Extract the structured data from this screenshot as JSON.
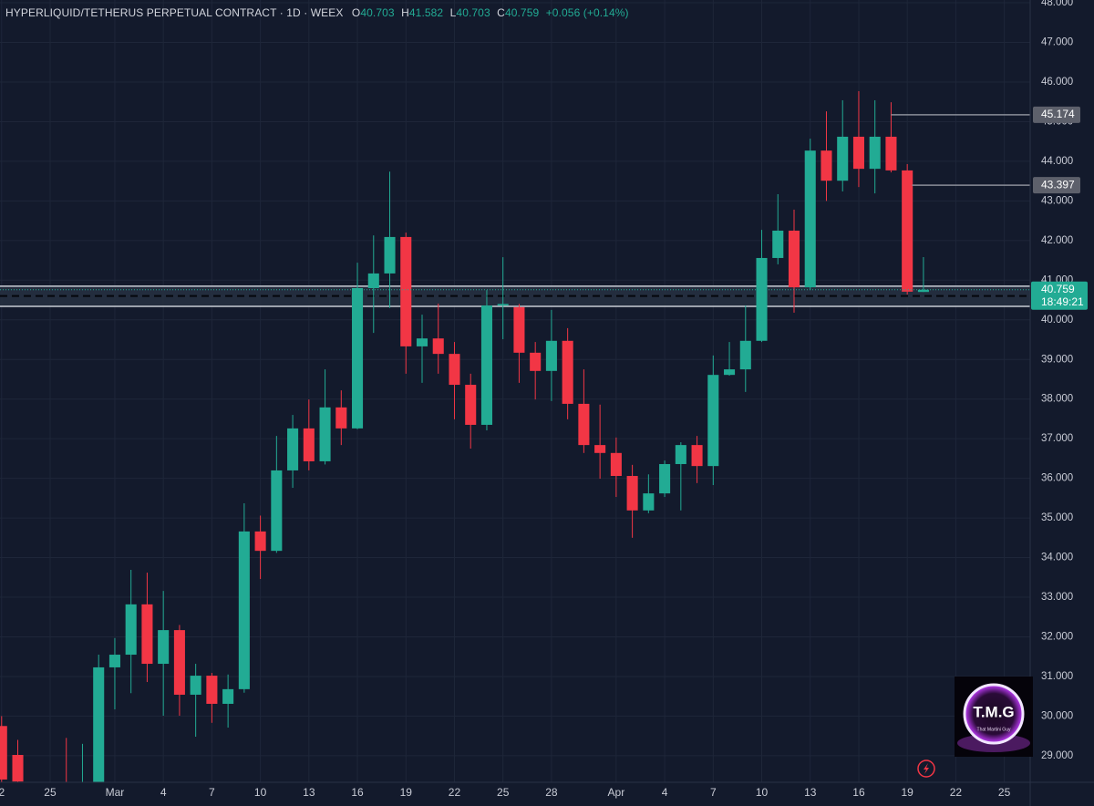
{
  "header": {
    "symbol": "HYPERLIQUID/TETHERUS PERPETUAL CONTRACT · 1D · WEEX",
    "o": "O",
    "h": "H",
    "l": "L",
    "c": "C",
    "change": "+0.056 (+0.14%)"
  },
  "chart_data": {
    "type": "candlestick",
    "x": [
      0,
      1,
      4,
      5,
      6,
      7,
      8,
      9,
      10,
      11,
      12,
      13,
      14,
      15,
      16,
      17,
      18,
      19,
      20,
      21,
      22,
      23,
      24,
      25,
      26,
      27,
      28,
      29,
      30,
      31,
      32,
      33,
      34,
      35,
      36,
      37,
      38,
      39,
      40,
      41,
      42,
      43,
      44,
      45,
      46,
      47,
      48,
      49,
      50,
      51,
      52,
      53,
      54,
      55,
      56,
      57
    ],
    "series": {
      "open": [
        29.75,
        29.02,
        28.1,
        27.9,
        28.3,
        31.23,
        31.55,
        32.82,
        31.32,
        32.17,
        30.54,
        31.02,
        30.31,
        30.68,
        34.66,
        34.17,
        36.2,
        37.26,
        36.43,
        37.79,
        37.26,
        40.8,
        41.17,
        42.09,
        39.33,
        39.53,
        39.14,
        38.36,
        37.35,
        40.36,
        40.32,
        39.17,
        38.71,
        39.47,
        37.88,
        36.84,
        36.64,
        36.06,
        35.19,
        35.62,
        36.36,
        36.84,
        36.31,
        38.61,
        38.75,
        39.47,
        41.56,
        42.25,
        40.82,
        44.27,
        43.51,
        44.62,
        43.81,
        44.62,
        43.77,
        40.703
      ],
      "high": [
        30.0,
        29.4,
        29.45,
        29.3,
        31.55,
        31.97,
        33.69,
        33.62,
        33.16,
        32.3,
        31.32,
        31.09,
        31.05,
        35.37,
        35.06,
        37.07,
        37.6,
        37.99,
        38.75,
        38.22,
        41.44,
        42.13,
        43.74,
        42.2,
        40.13,
        40.41,
        39.44,
        38.64,
        40.75,
        41.58,
        40.4,
        39.44,
        40.25,
        39.79,
        38.75,
        37.86,
        37.03,
        36.34,
        36.1,
        36.45,
        36.91,
        37.07,
        39.1,
        39.44,
        40.36,
        42.27,
        43.17,
        42.78,
        44.57,
        45.26,
        45.54,
        45.77,
        45.54,
        45.49,
        43.93,
        41.582
      ],
      "low": [
        28.3,
        28.3,
        27.7,
        27.6,
        28.0,
        30.17,
        30.58,
        30.86,
        30.01,
        30.01,
        29.48,
        29.83,
        29.71,
        30.59,
        33.46,
        34.12,
        35.76,
        36.2,
        36.35,
        36.84,
        37.24,
        39.67,
        40.3,
        38.64,
        38.41,
        38.64,
        37.49,
        36.75,
        37.21,
        39.51,
        38.41,
        37.99,
        37.95,
        37.49,
        36.64,
        35.99,
        35.53,
        34.5,
        35.12,
        35.53,
        35.19,
        35.88,
        35.83,
        38.59,
        38.18,
        39.44,
        41.4,
        40.18,
        40.75,
        43.0,
        43.24,
        43.35,
        43.19,
        43.72,
        40.64,
        40.703
      ],
      "close": [
        28.4,
        28.35,
        27.9,
        28.3,
        31.23,
        31.55,
        32.82,
        31.32,
        32.17,
        30.54,
        31.02,
        30.31,
        30.68,
        34.66,
        34.17,
        36.2,
        37.26,
        36.43,
        37.79,
        37.26,
        40.8,
        41.17,
        42.09,
        39.33,
        39.53,
        39.14,
        38.36,
        37.35,
        40.36,
        40.4,
        39.17,
        38.71,
        39.47,
        37.88,
        36.84,
        36.64,
        36.06,
        35.19,
        35.62,
        36.36,
        36.84,
        36.31,
        38.61,
        38.75,
        39.47,
        41.56,
        42.25,
        40.82,
        44.27,
        43.51,
        44.62,
        43.81,
        44.62,
        43.77,
        40.71,
        40.759
      ]
    },
    "up_color": "#22ab94",
    "down_color": "#f23645",
    "xlim": [
      -0.1,
      63.6
    ],
    "xticks": [
      {
        "value": 0,
        "label": "2"
      },
      {
        "value": 3,
        "label": "25"
      },
      {
        "value": 7,
        "label": "Mar"
      },
      {
        "value": 10,
        "label": "4"
      },
      {
        "value": 13,
        "label": "7"
      },
      {
        "value": 16,
        "label": "10"
      },
      {
        "value": 19,
        "label": "13"
      },
      {
        "value": 22,
        "label": "16"
      },
      {
        "value": 25,
        "label": "19"
      },
      {
        "value": 28,
        "label": "22"
      },
      {
        "value": 31,
        "label": "25"
      },
      {
        "value": 34,
        "label": "28"
      },
      {
        "value": 38,
        "label": "Apr"
      },
      {
        "value": 41,
        "label": "4"
      },
      {
        "value": 44,
        "label": "7"
      },
      {
        "value": 47,
        "label": "10"
      },
      {
        "value": 50,
        "label": "13"
      },
      {
        "value": 53,
        "label": "16"
      },
      {
        "value": 56,
        "label": "19"
      },
      {
        "value": 59,
        "label": "22"
      },
      {
        "value": 62,
        "label": "25"
      }
    ],
    "ylim": [
      28.33,
      48.07
    ],
    "yticks": [
      {
        "value": 29,
        "label": "29.000"
      },
      {
        "value": 30,
        "label": "30.000"
      },
      {
        "value": 31,
        "label": "31.000"
      },
      {
        "value": 32,
        "label": "32.000"
      },
      {
        "value": 33,
        "label": "33.000"
      },
      {
        "value": 34,
        "label": "34.000"
      },
      {
        "value": 35,
        "label": "35.000"
      },
      {
        "value": 36,
        "label": "36.000"
      },
      {
        "value": 37,
        "label": "37.000"
      },
      {
        "value": 38,
        "label": "38.000"
      },
      {
        "value": 39,
        "label": "39.000"
      },
      {
        "value": 40,
        "label": "40.000"
      },
      {
        "value": 41,
        "label": "41.000"
      },
      {
        "value": 42,
        "label": "42.000"
      },
      {
        "value": 43,
        "label": "43.000"
      },
      {
        "value": 44,
        "label": "44.000"
      },
      {
        "value": 45,
        "label": "45.000"
      },
      {
        "value": 46,
        "label": "46.000"
      },
      {
        "value": 47,
        "label": "47.000"
      },
      {
        "value": 48,
        "label": "48.000"
      }
    ],
    "grid": true,
    "levels": [
      {
        "value": 45.174,
        "start": 55
      },
      {
        "value": 43.397,
        "start": 56.3
      }
    ],
    "zone": {
      "top": 40.85,
      "bottom": 40.34,
      "mid": 40.6
    },
    "countdown": "18:49:21",
    "logo": {
      "title": "T.M.G",
      "subtitle": "That Martini Guy"
    }
  }
}
